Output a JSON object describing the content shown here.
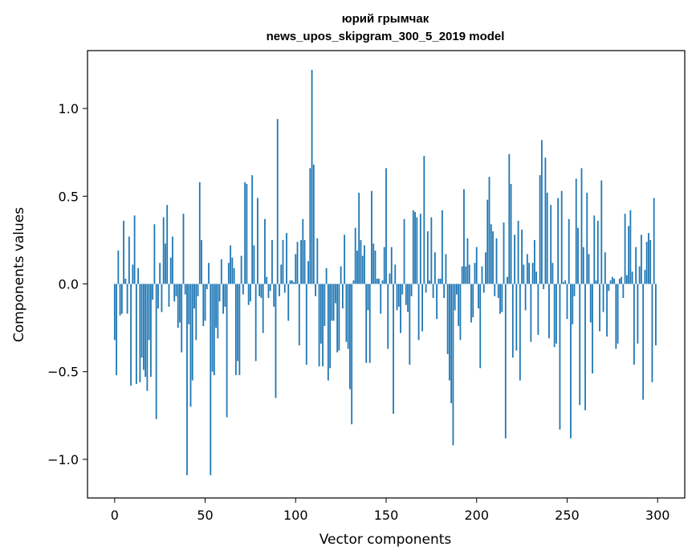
{
  "chart_data": {
    "type": "bar",
    "title_line1": "юрий грымчак",
    "title_line2": "news_upos_skipgram_300_5_2019 model",
    "xlabel": "Vector components",
    "ylabel": "Components values",
    "xlim": [
      -15,
      315
    ],
    "ylim": [
      -1.22,
      1.33
    ],
    "x_ticks": [
      0,
      50,
      100,
      150,
      200,
      250,
      300
    ],
    "x_tick_labels": [
      "0",
      "50",
      "100",
      "150",
      "200",
      "250",
      "300"
    ],
    "y_ticks": [
      -1.0,
      -0.5,
      0.0,
      0.5,
      1.0
    ],
    "y_tick_labels": [
      "−1.0",
      "−0.5",
      "0.0",
      "0.5",
      "1.0"
    ],
    "bar_color": "#1f77b4",
    "values": [
      -0.32,
      -0.52,
      0.19,
      -0.18,
      -0.17,
      0.36,
      0.03,
      -0.17,
      0.27,
      -0.58,
      0.11,
      0.39,
      -0.57,
      0.09,
      -0.56,
      -0.42,
      -0.49,
      -0.53,
      -0.61,
      -0.32,
      -0.53,
      -0.09,
      0.34,
      -0.77,
      -0.14,
      0.12,
      -0.16,
      0.38,
      0.23,
      0.45,
      -0.13,
      0.15,
      0.27,
      -0.1,
      -0.07,
      -0.25,
      -0.22,
      -0.39,
      0.4,
      -0.06,
      -1.09,
      -0.23,
      -0.7,
      -0.55,
      -0.14,
      -0.32,
      -0.07,
      0.58,
      0.25,
      -0.24,
      -0.21,
      -0.03,
      0.12,
      -1.09,
      -0.5,
      -0.52,
      -0.25,
      -0.31,
      -0.1,
      0.14,
      -0.17,
      -0.13,
      -0.76,
      0.12,
      0.22,
      0.15,
      0.09,
      -0.52,
      -0.44,
      -0.52,
      0.16,
      -0.06,
      0.58,
      0.57,
      -0.12,
      -0.1,
      0.62,
      0.22,
      -0.44,
      0.49,
      -0.07,
      -0.08,
      -0.28,
      0.37,
      0.04,
      -0.08,
      -0.04,
      0.25,
      -0.13,
      -0.65,
      0.94,
      -0.07,
      0.11,
      0.25,
      -0.05,
      0.29,
      -0.21,
      0.02,
      0.02,
      0.01,
      0.17,
      0.24,
      -0.35,
      0.25,
      0.37,
      0.25,
      -0.46,
      0.13,
      0.66,
      1.22,
      0.68,
      -0.07,
      0.26,
      -0.47,
      -0.34,
      -0.47,
      -0.24,
      0.09,
      -0.55,
      -0.48,
      -0.21,
      -0.21,
      -0.11,
      -0.39,
      -0.38,
      0.1,
      -0.14,
      0.28,
      -0.33,
      -0.37,
      -0.6,
      -0.8,
      0.02,
      0.32,
      0.19,
      0.52,
      0.25,
      0.16,
      0.22,
      -0.45,
      -0.15,
      -0.45,
      0.53,
      0.23,
      0.19,
      0.03,
      0.03,
      -0.17,
      0.02,
      0.21,
      0.66,
      -0.37,
      0.06,
      0.21,
      -0.74,
      0.11,
      -0.15,
      -0.13,
      -0.28,
      -0.06,
      0.37,
      -0.12,
      -0.16,
      -0.46,
      -0.07,
      0.42,
      0.41,
      0.38,
      -0.32,
      0.4,
      -0.27,
      0.73,
      -0.05,
      0.3,
      0.02,
      0.38,
      -0.08,
      0.18,
      -0.2,
      0.03,
      0.03,
      0.42,
      -0.08,
      0.17,
      -0.4,
      -0.55,
      -0.68,
      -0.92,
      -0.15,
      -0.06,
      -0.24,
      -0.32,
      0.1,
      0.54,
      0.1,
      0.26,
      0.11,
      -0.22,
      -0.19,
      0.12,
      0.21,
      -0.14,
      -0.48,
      0.1,
      -0.05,
      0.18,
      0.48,
      0.61,
      0.34,
      0.3,
      -0.07,
      0.26,
      -0.08,
      -0.17,
      -0.16,
      0.35,
      -0.88,
      0.04,
      0.74,
      0.57,
      -0.42,
      0.28,
      -0.38,
      0.36,
      -0.55,
      0.31,
      0.11,
      -0.15,
      0.17,
      0.12,
      -0.33,
      0.12,
      0.25,
      0.07,
      -0.29,
      0.62,
      0.82,
      -0.03,
      0.72,
      0.52,
      -0.31,
      0.45,
      0.12,
      -0.36,
      -0.34,
      0.49,
      -0.83,
      0.53,
      0.01,
      0.02,
      -0.2,
      0.37,
      -0.88,
      -0.23,
      -0.07,
      0.6,
      0.32,
      -0.69,
      0.66,
      0.21,
      -0.72,
      0.52,
      0.17,
      -0.22,
      -0.51,
      0.39,
      0.02,
      0.36,
      -0.27,
      0.59,
      -0.16,
      0.18,
      -0.3,
      -0.04,
      0.02,
      0.04,
      0.03,
      -0.37,
      -0.34,
      0.03,
      0.04,
      -0.08,
      0.4,
      0.05,
      0.33,
      0.42,
      0.07,
      -0.46,
      0.21,
      -0.34,
      0.1,
      0.28,
      -0.66,
      0.08,
      0.24,
      0.29,
      0.25,
      -0.56,
      0.49,
      -0.35
    ]
  }
}
